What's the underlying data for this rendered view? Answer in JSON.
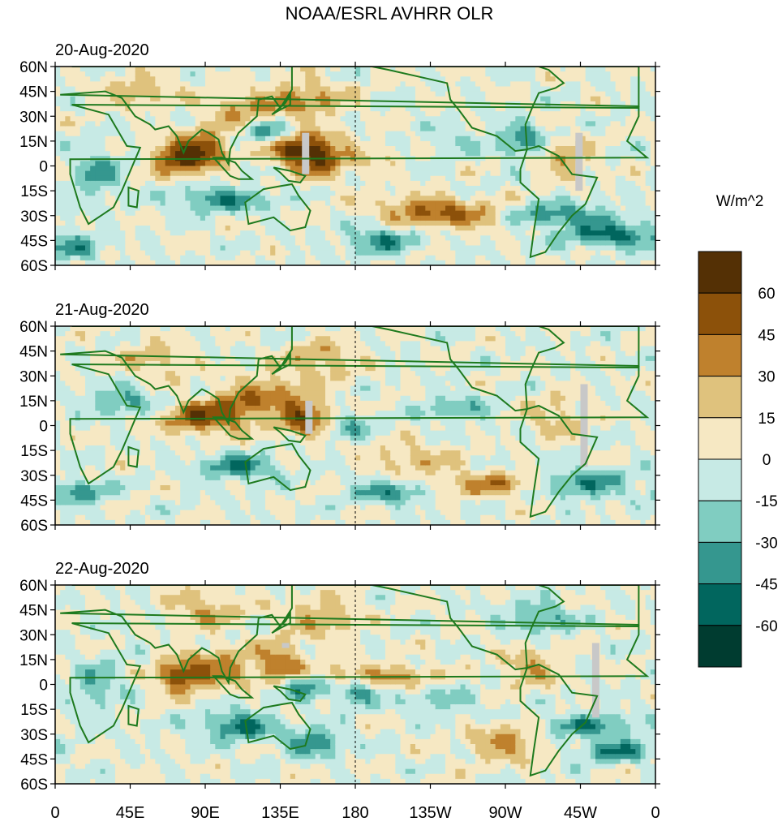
{
  "chart_data": {
    "type": "heatmap",
    "title": "NOAA/ESRL AVHRR OLR",
    "units_label": "W/m^2",
    "x_ticks": [
      "0",
      "45E",
      "90E",
      "135E",
      "180",
      "135W",
      "90W",
      "45W",
      "0"
    ],
    "y_ticks": [
      "60N",
      "45N",
      "30N",
      "15N",
      "0",
      "15S",
      "30S",
      "45S",
      "60S"
    ],
    "xlim": [
      0,
      360
    ],
    "ylim": [
      -60,
      60
    ],
    "dateline_x": 180,
    "colorbar": {
      "levels": [
        -75,
        -60,
        -45,
        -30,
        -15,
        0,
        15,
        30,
        45,
        60,
        75
      ],
      "tick_labels": [
        "-60",
        "-45",
        "-30",
        "-15",
        "0",
        "15",
        "30",
        "45",
        "60"
      ],
      "colors": [
        "#003c30",
        "#01665e",
        "#35978f",
        "#80cdc1",
        "#c7eae5",
        "#f6e8c3",
        "#dfc27d",
        "#bf812d",
        "#8c510a",
        "#543005"
      ]
    },
    "missing_color": "#c8c8c8",
    "land_color": "#1e7a1e",
    "panels": [
      {
        "date": "20-Aug-2020",
        "anomalies": [
          {
            "lon": 75,
            "lat": 5,
            "sx": 12,
            "sy": 7,
            "a": 65
          },
          {
            "lon": 92,
            "lat": 12,
            "sx": 10,
            "sy": 8,
            "a": 40
          },
          {
            "lon": 145,
            "lat": 10,
            "sx": 12,
            "sy": 8,
            "a": 60
          },
          {
            "lon": 160,
            "lat": 5,
            "sx": 10,
            "sy": 8,
            "a": 40
          },
          {
            "lon": 150,
            "lat": 40,
            "sx": 18,
            "sy": 8,
            "a": 35
          },
          {
            "lon": 110,
            "lat": 35,
            "sx": 15,
            "sy": 6,
            "a": 30
          },
          {
            "lon": 100,
            "lat": -20,
            "sx": 20,
            "sy": 5,
            "a": -45
          },
          {
            "lon": 130,
            "lat": 20,
            "sx": 10,
            "sy": 5,
            "a": -40
          },
          {
            "lon": 215,
            "lat": -25,
            "sx": 20,
            "sy": 6,
            "a": 25
          },
          {
            "lon": 245,
            "lat": -30,
            "sx": 25,
            "sy": 6,
            "a": 40
          },
          {
            "lon": 300,
            "lat": -30,
            "sx": 25,
            "sy": 5,
            "a": -45
          },
          {
            "lon": 335,
            "lat": -42,
            "sx": 20,
            "sy": 5,
            "a": -50
          },
          {
            "lon": 280,
            "lat": 15,
            "sx": 10,
            "sy": 8,
            "a": -40
          },
          {
            "lon": 50,
            "lat": 45,
            "sx": 15,
            "sy": 6,
            "a": 30
          },
          {
            "lon": 25,
            "lat": -5,
            "sx": 10,
            "sy": 10,
            "a": -35
          },
          {
            "lon": 15,
            "lat": -50,
            "sx": 10,
            "sy": 5,
            "a": -35
          },
          {
            "lon": 195,
            "lat": -45,
            "sx": 15,
            "sy": 6,
            "a": -40
          },
          {
            "lon": 305,
            "lat": 5,
            "sx": 12,
            "sy": 8,
            "a": 30
          },
          {
            "lon": 240,
            "lat": 15,
            "sx": 12,
            "sy": 5,
            "a": -20
          },
          {
            "lon": 185,
            "lat": 5,
            "sx": 15,
            "sy": 8,
            "a": 15
          }
        ]
      },
      {
        "date": "21-Aug-2020",
        "anomalies": [
          {
            "lon": 85,
            "lat": 5,
            "sx": 14,
            "sy": 7,
            "a": 55
          },
          {
            "lon": 110,
            "lat": 10,
            "sx": 10,
            "sy": 8,
            "a": 40
          },
          {
            "lon": 150,
            "lat": 5,
            "sx": 12,
            "sy": 8,
            "a": 55
          },
          {
            "lon": 130,
            "lat": 20,
            "sx": 15,
            "sy": 8,
            "a": 30
          },
          {
            "lon": 110,
            "lat": -25,
            "sx": 15,
            "sy": 5,
            "a": -50
          },
          {
            "lon": 40,
            "lat": 15,
            "sx": 15,
            "sy": 6,
            "a": -35
          },
          {
            "lon": 15,
            "lat": -40,
            "sx": 12,
            "sy": 5,
            "a": -40
          },
          {
            "lon": 200,
            "lat": -40,
            "sx": 15,
            "sy": 5,
            "a": -40
          },
          {
            "lon": 265,
            "lat": -35,
            "sx": 25,
            "sy": 5,
            "a": 40
          },
          {
            "lon": 315,
            "lat": -35,
            "sx": 20,
            "sy": 6,
            "a": -45
          },
          {
            "lon": 240,
            "lat": 10,
            "sx": 15,
            "sy": 5,
            "a": -30
          },
          {
            "lon": 300,
            "lat": 5,
            "sx": 12,
            "sy": 8,
            "a": 25
          },
          {
            "lon": 160,
            "lat": 40,
            "sx": 15,
            "sy": 8,
            "a": 30
          },
          {
            "lon": 215,
            "lat": -20,
            "sx": 20,
            "sy": 6,
            "a": 25
          },
          {
            "lon": 175,
            "lat": 0,
            "sx": 10,
            "sy": 6,
            "a": -30
          },
          {
            "lon": 60,
            "lat": 40,
            "sx": 15,
            "sy": 8,
            "a": 25
          }
        ]
      },
      {
        "date": "22-Aug-2020",
        "anomalies": [
          {
            "lon": 75,
            "lat": 5,
            "sx": 10,
            "sy": 7,
            "a": 60
          },
          {
            "lon": 100,
            "lat": 10,
            "sx": 12,
            "sy": 8,
            "a": 40
          },
          {
            "lon": 135,
            "lat": 15,
            "sx": 10,
            "sy": 8,
            "a": 40
          },
          {
            "lon": 165,
            "lat": 5,
            "sx": 25,
            "sy": 5,
            "a": 30
          },
          {
            "lon": 210,
            "lat": 5,
            "sx": 15,
            "sy": 5,
            "a": 25
          },
          {
            "lon": 150,
            "lat": 0,
            "sx": 10,
            "sy": 6,
            "a": -50
          },
          {
            "lon": 180,
            "lat": -5,
            "sx": 8,
            "sy": 5,
            "a": -45
          },
          {
            "lon": 110,
            "lat": -25,
            "sx": 15,
            "sy": 6,
            "a": -50
          },
          {
            "lon": 155,
            "lat": -35,
            "sx": 12,
            "sy": 6,
            "a": -45
          },
          {
            "lon": 270,
            "lat": -35,
            "sx": 15,
            "sy": 8,
            "a": 35
          },
          {
            "lon": 320,
            "lat": -25,
            "sx": 20,
            "sy": 5,
            "a": -40
          },
          {
            "lon": 335,
            "lat": -40,
            "sx": 15,
            "sy": 5,
            "a": -45
          },
          {
            "lon": 90,
            "lat": 45,
            "sx": 15,
            "sy": 8,
            "a": 30
          },
          {
            "lon": 160,
            "lat": 40,
            "sx": 15,
            "sy": 8,
            "a": 30
          },
          {
            "lon": 285,
            "lat": 10,
            "sx": 12,
            "sy": 8,
            "a": 30
          },
          {
            "lon": 230,
            "lat": -10,
            "sx": 20,
            "sy": 6,
            "a": -20
          },
          {
            "lon": 25,
            "lat": 0,
            "sx": 10,
            "sy": 10,
            "a": -30
          },
          {
            "lon": 290,
            "lat": 40,
            "sx": 15,
            "sy": 6,
            "a": -35
          }
        ]
      }
    ],
    "missing_strips": [
      [
        {
          "lon": 148,
          "lat0": 20,
          "lat1": -5
        },
        {
          "lon": 312,
          "lat0": 20,
          "lat1": -15
        }
      ],
      [
        {
          "lon": 150,
          "lat0": 15,
          "lat1": -5
        },
        {
          "lon": 315,
          "lat0": 25,
          "lat1": -25
        }
      ],
      [
        {
          "lon": 136,
          "lat0": 25,
          "lat1": 22
        },
        {
          "lon": 322,
          "lat0": 25,
          "lat1": -20
        }
      ]
    ]
  }
}
